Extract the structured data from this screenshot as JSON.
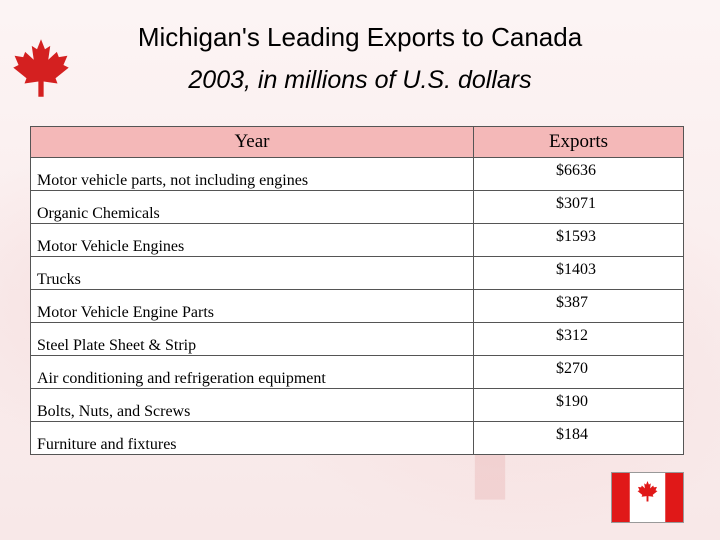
{
  "slide": {
    "title": "Michigan's Leading Exports to Canada",
    "subtitle": "2003, in millions of U.S. dollars"
  },
  "table": {
    "headers": [
      "Year",
      "Exports"
    ],
    "rows": [
      {
        "item": "Motor vehicle parts, not including engines",
        "value": "$6636"
      },
      {
        "item": "Organic Chemicals",
        "value": "$3071"
      },
      {
        "item": "Motor Vehicle Engines",
        "value": "$1593"
      },
      {
        "item": "Trucks",
        "value": "$1403"
      },
      {
        "item": "Motor Vehicle Engine Parts",
        "value": "$387"
      },
      {
        "item": "Steel Plate Sheet & Strip",
        "value": "$312"
      },
      {
        "item": "Air conditioning and refrigeration equipment",
        "value": "$270"
      },
      {
        "item": "Bolts, Nuts, and Screws",
        "value": "$190"
      },
      {
        "item": "Furniture and fixtures",
        "value": "$184"
      }
    ]
  },
  "icons": {
    "corner_logo": "maple-leaf-icon",
    "flag": "canada-flag-icon"
  },
  "colors": {
    "header_fill": "#f4b8b8",
    "leaf_red": "#d42020",
    "flag_red": "#e01818"
  }
}
